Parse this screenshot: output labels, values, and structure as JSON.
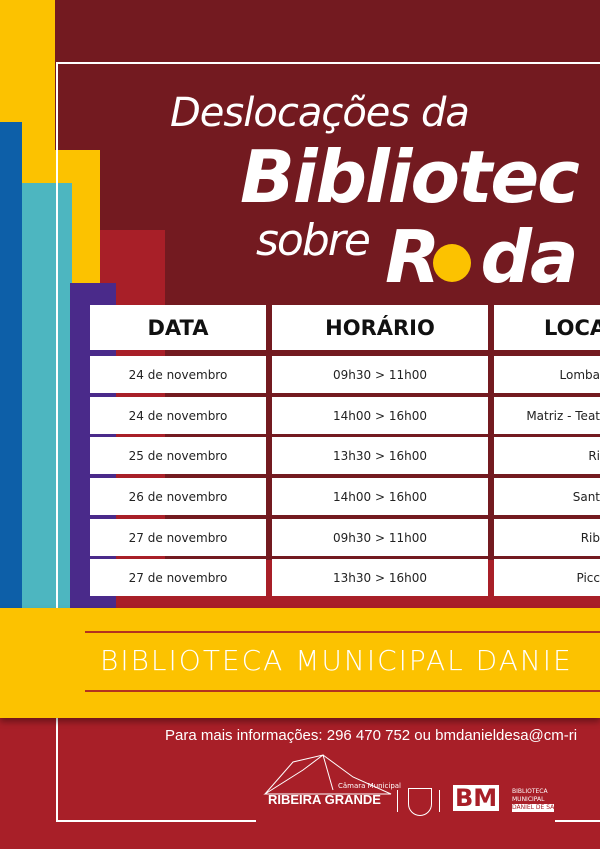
{
  "title": {
    "line1": "Deslocações da",
    "line2": "Bibliotec",
    "line3": "sobre",
    "line4": "R",
    "line4b": "da"
  },
  "table": {
    "headers": [
      "DATA",
      "HORÁRIO",
      "LOCA"
    ],
    "rows": [
      [
        "24 de novembro",
        "09h30 > 11h00",
        "Lomba"
      ],
      [
        "24 de novembro",
        "14h00 > 16h00",
        "Matriz - Teat"
      ],
      [
        "25 de novembro",
        "13h30 > 16h00",
        "Ri"
      ],
      [
        "26 de novembro",
        "14h00 > 16h00",
        "Sant"
      ],
      [
        "27 de novembro",
        "09h30 > 11h00",
        "Rib"
      ],
      [
        "27 de novembro",
        "13h30 > 16h00",
        "Picc"
      ]
    ]
  },
  "band": "BIBLIOTECA MUNICIPAL DANIE",
  "info": "Para mais informações: 296 470 752 ou bmdanieldesa@cm-ri",
  "logos": {
    "camara_small": "Câmara Municipal",
    "camara": "RIBEIRA GRANDE",
    "bm": "BM",
    "bm_l1": "BIBLIOTECA",
    "bm_l2": "MUNICIPAL",
    "bm_l3": "DANIEL DE SÁ"
  },
  "colors": {
    "dark_red": "#731a20",
    "red": "#a81f28",
    "yellow": "#fcc200",
    "blue": "#0d5fa8",
    "teal": "#4db6c0",
    "purple": "#4a2a8a"
  }
}
